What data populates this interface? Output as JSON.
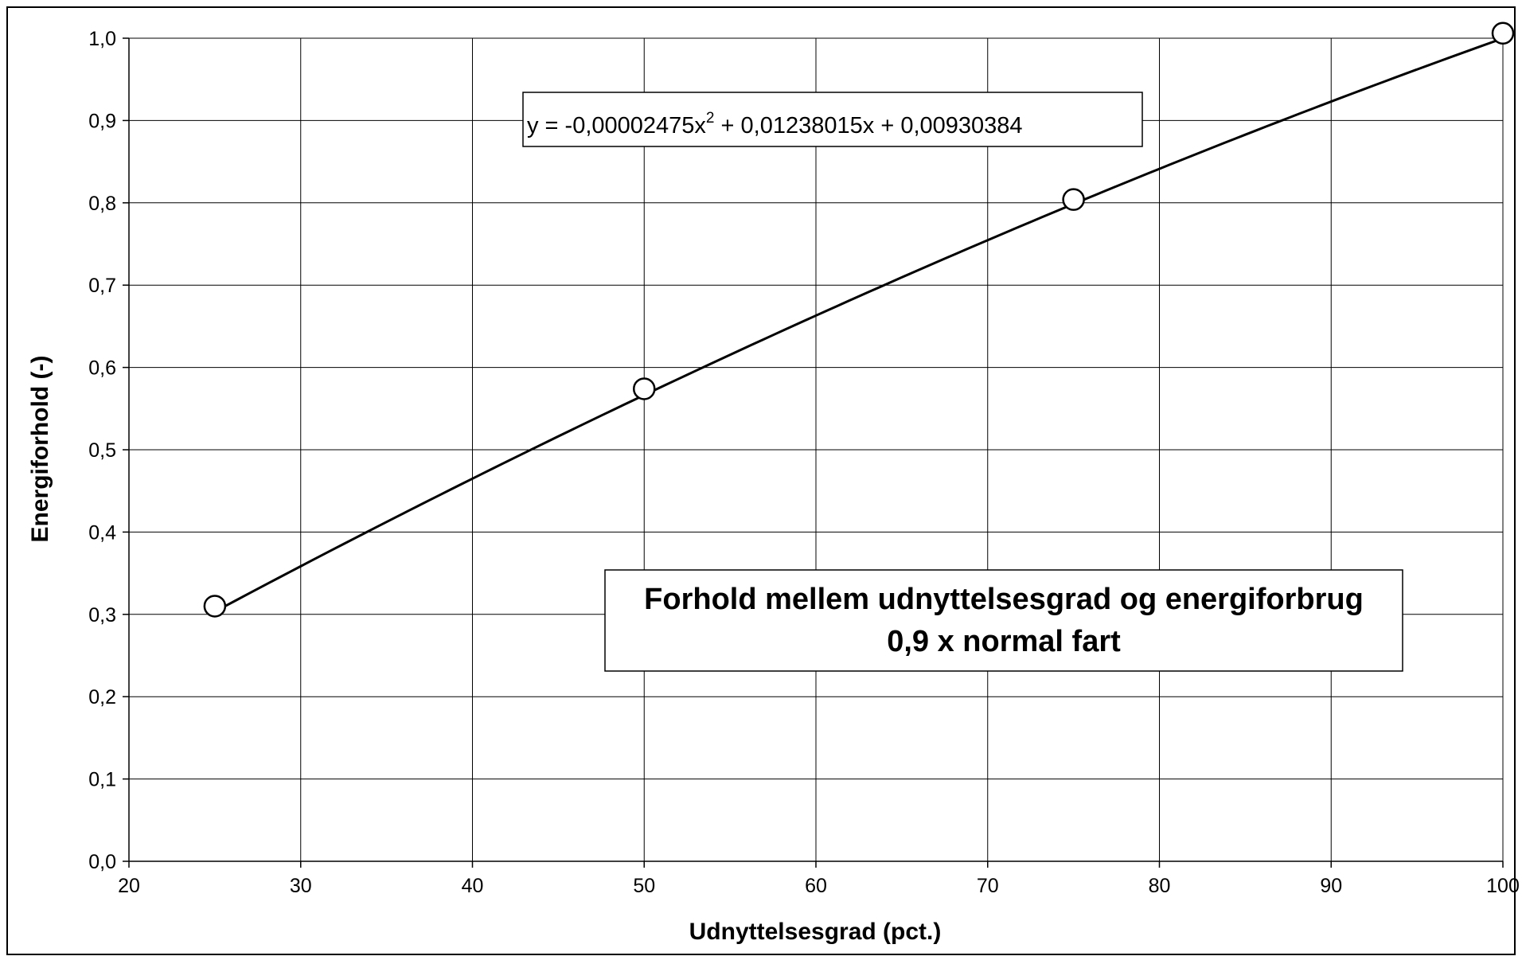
{
  "chart_data": {
    "type": "scatter",
    "title": "Forhold mellem udnyttelsesgrad og energiforbrug",
    "subtitle": "0,9 x normal fart",
    "xlabel": "Udnyttelsesgrad (pct.)",
    "ylabel": "Energiforhold (-)",
    "xlim": [
      20,
      100
    ],
    "ylim": [
      0,
      1.0
    ],
    "grid": true,
    "x_ticks": [
      20,
      30,
      40,
      50,
      60,
      70,
      80,
      90,
      100
    ],
    "x_tick_labels": [
      "20",
      "30",
      "40",
      "50",
      "60",
      "70",
      "80",
      "90",
      "100"
    ],
    "y_ticks": [
      0,
      0.1,
      0.2,
      0.3,
      0.4,
      0.5,
      0.6,
      0.7,
      0.8,
      0.9,
      1.0
    ],
    "y_tick_labels": [
      "0,0",
      "0,1",
      "0,2",
      "0,3",
      "0,4",
      "0,5",
      "0,6",
      "0,7",
      "0,8",
      "0,9",
      "1,0"
    ],
    "series": [
      {
        "marker": "open-circle",
        "x": [
          25,
          50,
          75,
          100
        ],
        "y": [
          0.31,
          0.574,
          0.804,
          1.006
        ]
      }
    ],
    "trendline": {
      "type": "polynomial",
      "order": 2,
      "coefficients": [
        -2.475e-05,
        0.01238015,
        0.00930384
      ],
      "x_range": [
        25,
        100
      ],
      "equation_label": {
        "main": "y = -0,00002475x",
        "superscript": "2",
        "rest": " + 0,01238015x + 0,00930384"
      }
    },
    "colors": {
      "line": "#000000",
      "grid": "#000000",
      "background": "#ffffff"
    }
  }
}
